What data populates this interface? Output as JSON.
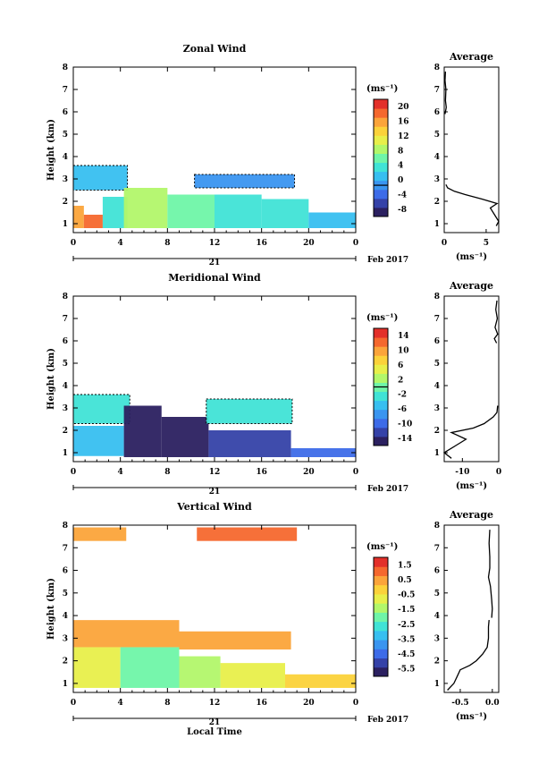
{
  "chart_data": [
    {
      "type": "heatmap",
      "title": "Zonal Wind",
      "xlabel": "",
      "ylabel": "Height (km)",
      "xlim": [
        0,
        24
      ],
      "ylim": [
        0.6,
        8
      ],
      "x_ticks": [
        "0",
        "4",
        "8",
        "12",
        "16",
        "20",
        "0"
      ],
      "y_ticks": [
        "1",
        "2",
        "3",
        "4",
        "5",
        "6",
        "7",
        "8"
      ],
      "date_day": "21",
      "date_month": "Feb 2017",
      "colorbar": {
        "unit": "(ms⁻¹)",
        "min": -8,
        "max": 22,
        "labels": [
          "20",
          "16",
          "12",
          "8",
          "4",
          "0",
          "-4",
          "-8"
        ],
        "zero_line": 0
      },
      "blocks": [
        {
          "t0": 0,
          "t1": 0.9,
          "h0": 0.8,
          "h1": 1.8,
          "value": 16
        },
        {
          "t0": 0.9,
          "t1": 2.5,
          "h0": 0.8,
          "h1": 1.4,
          "value": 19
        },
        {
          "t0": 0,
          "t1": 4.6,
          "h0": 2.5,
          "h1": 3.6,
          "value": 3,
          "contour": true
        },
        {
          "t0": 2.5,
          "t1": 4.6,
          "h0": 0.8,
          "h1": 2.2,
          "value": 4
        },
        {
          "t0": 4.3,
          "t1": 8,
          "h0": 0.8,
          "h1": 2.6,
          "value": 9
        },
        {
          "t0": 8,
          "t1": 12,
          "h0": 0.8,
          "h1": 2.3,
          "value": 7
        },
        {
          "t0": 12,
          "t1": 16,
          "h0": 0.8,
          "h1": 2.3,
          "value": 5
        },
        {
          "t0": 16,
          "t1": 20,
          "h0": 0.8,
          "h1": 2.1,
          "value": 4
        },
        {
          "t0": 20,
          "t1": 24,
          "h0": 0.8,
          "h1": 1.5,
          "value": 2
        },
        {
          "t0": 10.3,
          "t1": 18.8,
          "h0": 2.6,
          "h1": 3.2,
          "value": -1,
          "contour": true
        }
      ],
      "avg_panel": {
        "title": "Average",
        "xlabel": "(ms⁻¹)",
        "xlim": [
          0,
          6.5
        ],
        "x_ticks": [
          "0",
          "5"
        ],
        "profile": [
          [
            0.9,
            6.2
          ],
          [
            1.1,
            6.5
          ],
          [
            1.4,
            6.0
          ],
          [
            1.7,
            5.5
          ],
          [
            1.9,
            6.3
          ],
          [
            2.1,
            4.5
          ],
          [
            2.3,
            2.5
          ],
          [
            2.45,
            1.2
          ],
          [
            2.6,
            0.4
          ],
          [
            2.75,
            0.2
          ]
        ],
        "upper_profile": [
          [
            5.9,
            0.1
          ],
          [
            6.2,
            0.25
          ],
          [
            6.5,
            0.15
          ],
          [
            7.0,
            0.2
          ],
          [
            7.4,
            0.1
          ],
          [
            7.8,
            0.15
          ]
        ]
      }
    },
    {
      "type": "heatmap",
      "title": "Meridional Wind",
      "xlabel": "",
      "ylabel": "Height (km)",
      "xlim": [
        0,
        24
      ],
      "ylim": [
        0.6,
        8
      ],
      "x_ticks": [
        "0",
        "4",
        "8",
        "12",
        "16",
        "20",
        "0"
      ],
      "y_ticks": [
        "1",
        "2",
        "3",
        "4",
        "5",
        "6",
        "7",
        "8"
      ],
      "date_day": "21",
      "date_month": "Feb 2017",
      "colorbar": {
        "unit": "(ms⁻¹)",
        "min": -16,
        "max": 16,
        "labels": [
          "14",
          "10",
          "6",
          "2",
          "-2",
          "-6",
          "-10",
          "-14"
        ],
        "zero_line": 0
      },
      "blocks": [
        {
          "t0": 0,
          "t1": 4.8,
          "h0": 2.3,
          "h1": 3.6,
          "value": -1.5,
          "contour": true
        },
        {
          "t0": 0,
          "t1": 4.3,
          "h0": 0.85,
          "h1": 2.2,
          "value": -5
        },
        {
          "t0": 4.3,
          "t1": 7.5,
          "h0": 0.8,
          "h1": 3.1,
          "value": -15
        },
        {
          "t0": 7.5,
          "t1": 11.5,
          "h0": 0.8,
          "h1": 2.6,
          "value": -15
        },
        {
          "t0": 11.5,
          "t1": 18.5,
          "h0": 0.8,
          "h1": 2.0,
          "value": -13
        },
        {
          "t0": 18.5,
          "t1": 24,
          "h0": 0.8,
          "h1": 1.2,
          "value": -10
        },
        {
          "t0": 11.3,
          "t1": 18.6,
          "h0": 2.3,
          "h1": 3.4,
          "value": -1.5,
          "contour": true
        }
      ],
      "avg_panel": {
        "title": "Average",
        "xlabel": "(ms⁻¹)",
        "xlim": [
          -15,
          0
        ],
        "x_ticks": [
          "-10",
          "0"
        ],
        "profile": [
          [
            0.75,
            -13
          ],
          [
            1.0,
            -15
          ],
          [
            1.3,
            -12
          ],
          [
            1.6,
            -9
          ],
          [
            1.9,
            -13
          ],
          [
            2.1,
            -7
          ],
          [
            2.3,
            -4
          ],
          [
            2.6,
            -1.5
          ],
          [
            2.8,
            -0.5
          ],
          [
            3.1,
            -0.3
          ]
        ],
        "upper_profile": [
          [
            5.9,
            -0.6
          ],
          [
            6.1,
            -1.2
          ],
          [
            6.3,
            -0.3
          ],
          [
            6.6,
            -1.0
          ],
          [
            7.0,
            -0.4
          ],
          [
            7.4,
            -0.8
          ],
          [
            7.8,
            -0.5
          ]
        ]
      }
    },
    {
      "type": "heatmap",
      "title": "Vertical Wind",
      "xlabel": "Local Time",
      "ylabel": "Height (km)",
      "xlim": [
        0,
        24
      ],
      "ylim": [
        0.6,
        8
      ],
      "x_ticks": [
        "0",
        "4",
        "8",
        "12",
        "16",
        "20",
        "0"
      ],
      "y_ticks": [
        "1",
        "2",
        "3",
        "4",
        "5",
        "6",
        "7",
        "8"
      ],
      "date_day": "21",
      "date_month": "Feb 2017",
      "colorbar": {
        "unit": "(ms⁻¹)",
        "min": -6.0,
        "max": 2.0,
        "labels": [
          "1.5",
          "0.5",
          "-0.5",
          "-1.5",
          "-2.5",
          "-3.5",
          "-4.5",
          "-5.5"
        ]
      },
      "blocks": [
        {
          "t0": 0,
          "t1": 4.5,
          "h0": 7.3,
          "h1": 7.9,
          "value": 0.2
        },
        {
          "t0": 10.5,
          "t1": 19,
          "h0": 7.3,
          "h1": 7.9,
          "value": 1.0
        },
        {
          "t0": 0,
          "t1": 9,
          "h0": 2.6,
          "h1": 3.8,
          "value": 0.2
        },
        {
          "t0": 9,
          "t1": 18.5,
          "h0": 2.5,
          "h1": 3.3,
          "value": 0.3
        },
        {
          "t0": 0,
          "t1": 4,
          "h0": 0.8,
          "h1": 2.6,
          "value": -0.8
        },
        {
          "t0": 4,
          "t1": 9,
          "h0": 0.8,
          "h1": 2.6,
          "value": -1.8
        },
        {
          "t0": 9,
          "t1": 12.5,
          "h0": 0.8,
          "h1": 2.2,
          "value": -1.2
        },
        {
          "t0": 12.5,
          "t1": 18,
          "h0": 0.8,
          "h1": 1.9,
          "value": -0.6
        },
        {
          "t0": 18,
          "t1": 24,
          "h0": 0.8,
          "h1": 1.4,
          "value": 0.0
        }
      ],
      "avg_panel": {
        "title": "Average",
        "xlabel": "(ms⁻¹)",
        "xlim": [
          -0.75,
          0.1
        ],
        "x_ticks": [
          "-0.5",
          "0.0"
        ],
        "profile": [
          [
            0.7,
            -0.7
          ],
          [
            1.0,
            -0.6
          ],
          [
            1.3,
            -0.55
          ],
          [
            1.6,
            -0.5
          ],
          [
            1.8,
            -0.35
          ],
          [
            2.0,
            -0.25
          ],
          [
            2.3,
            -0.15
          ],
          [
            2.6,
            -0.08
          ],
          [
            3.0,
            -0.06
          ],
          [
            3.5,
            -0.06
          ],
          [
            3.8,
            -0.05
          ]
        ],
        "upper_profile": [
          [
            3.9,
            -0.01
          ],
          [
            4.3,
            0.0
          ],
          [
            4.7,
            -0.01
          ],
          [
            5.3,
            -0.03
          ],
          [
            5.7,
            -0.06
          ],
          [
            6.1,
            -0.04
          ],
          [
            6.6,
            -0.04
          ],
          [
            7.2,
            -0.05
          ],
          [
            7.8,
            -0.04
          ]
        ]
      }
    }
  ]
}
